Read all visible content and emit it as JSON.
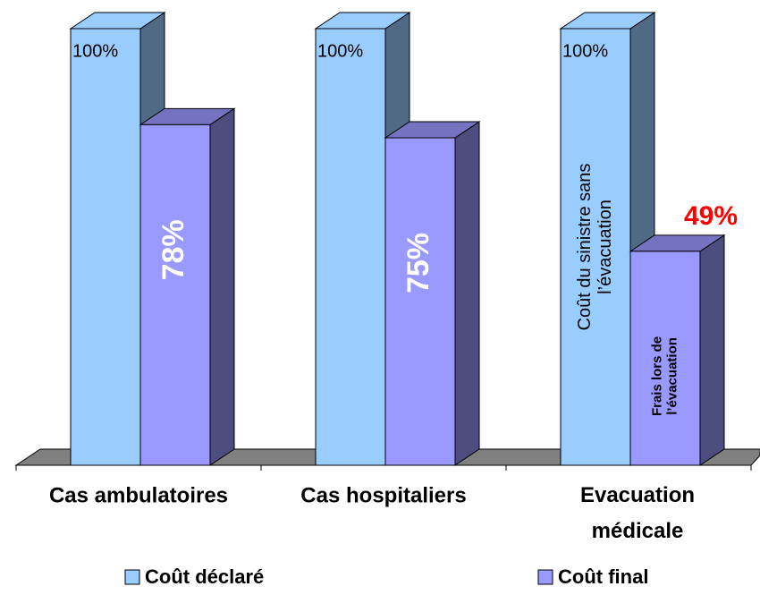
{
  "chart_data": {
    "type": "bar3d",
    "categories": [
      "Cas ambulatoires",
      "Cas hospitaliers",
      "Evacuation médicale"
    ],
    "series": [
      {
        "name": "Coût déclaré",
        "color": "#99ccff",
        "values": [
          100,
          100,
          100
        ],
        "value_labels": [
          "100%",
          "100%",
          "100%"
        ]
      },
      {
        "name": "Coût final",
        "color": "#9999ff",
        "values": [
          78,
          75,
          49
        ],
        "value_labels": [
          "78%",
          "75%",
          "49%"
        ]
      }
    ],
    "annotations": [
      {
        "series": 0,
        "category": 2,
        "lines": [
          "Coût du sinistre sans",
          "l’évacuation"
        ]
      },
      {
        "series": 1,
        "category": 2,
        "lines": [
          "Frais lors de",
          "l’évacuation"
        ]
      }
    ]
  }
}
